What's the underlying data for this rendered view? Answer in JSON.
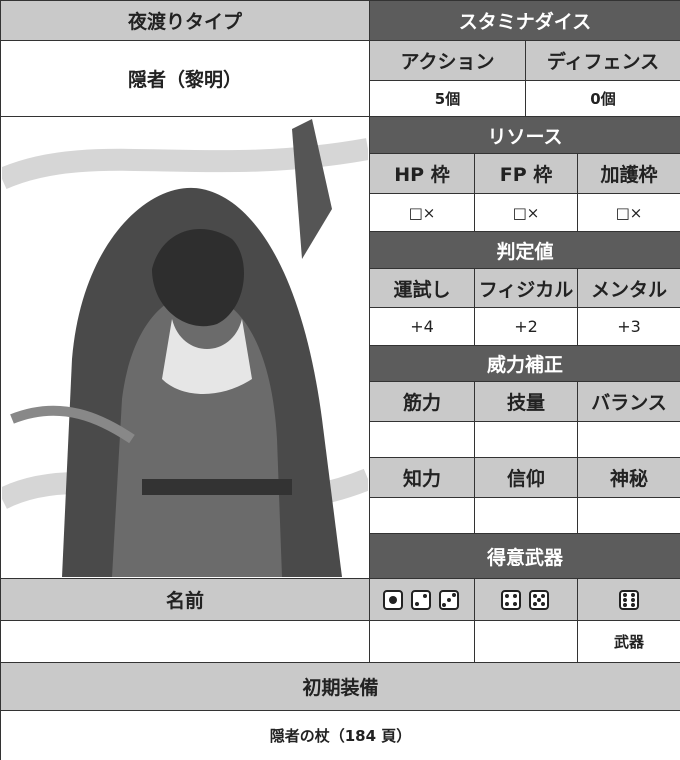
{
  "nightfarer": {
    "header": "夜渡りタイプ",
    "value": "隠者（黎明）"
  },
  "stamina_dice": {
    "header": "スタミナダイス",
    "columns": [
      {
        "label": "アクション",
        "value": "5個"
      },
      {
        "label": "ディフェンス",
        "value": "0個"
      }
    ]
  },
  "resources": {
    "header": "リソース",
    "columns": [
      {
        "label": "HP 枠",
        "value": "□×"
      },
      {
        "label": "FP 枠",
        "value": "□×"
      },
      {
        "label": "加護枠",
        "value": "□×"
      }
    ]
  },
  "checks": {
    "header": "判定値",
    "columns": [
      {
        "label": "運試し",
        "value": "+4"
      },
      {
        "label": "フィジカル",
        "value": "+2"
      },
      {
        "label": "メンタル",
        "value": "+3"
      }
    ]
  },
  "power_correction": {
    "header": "威力補正",
    "labels": [
      "筋力",
      "技量",
      "バランス",
      "知力",
      "信仰",
      "神秘"
    ]
  },
  "favored_weapons": {
    "header": "得意武器",
    "label": "武器"
  },
  "name": {
    "header": "名前"
  },
  "equipment": {
    "header": "初期装備",
    "value": "隠者の杖（184 頁）"
  }
}
